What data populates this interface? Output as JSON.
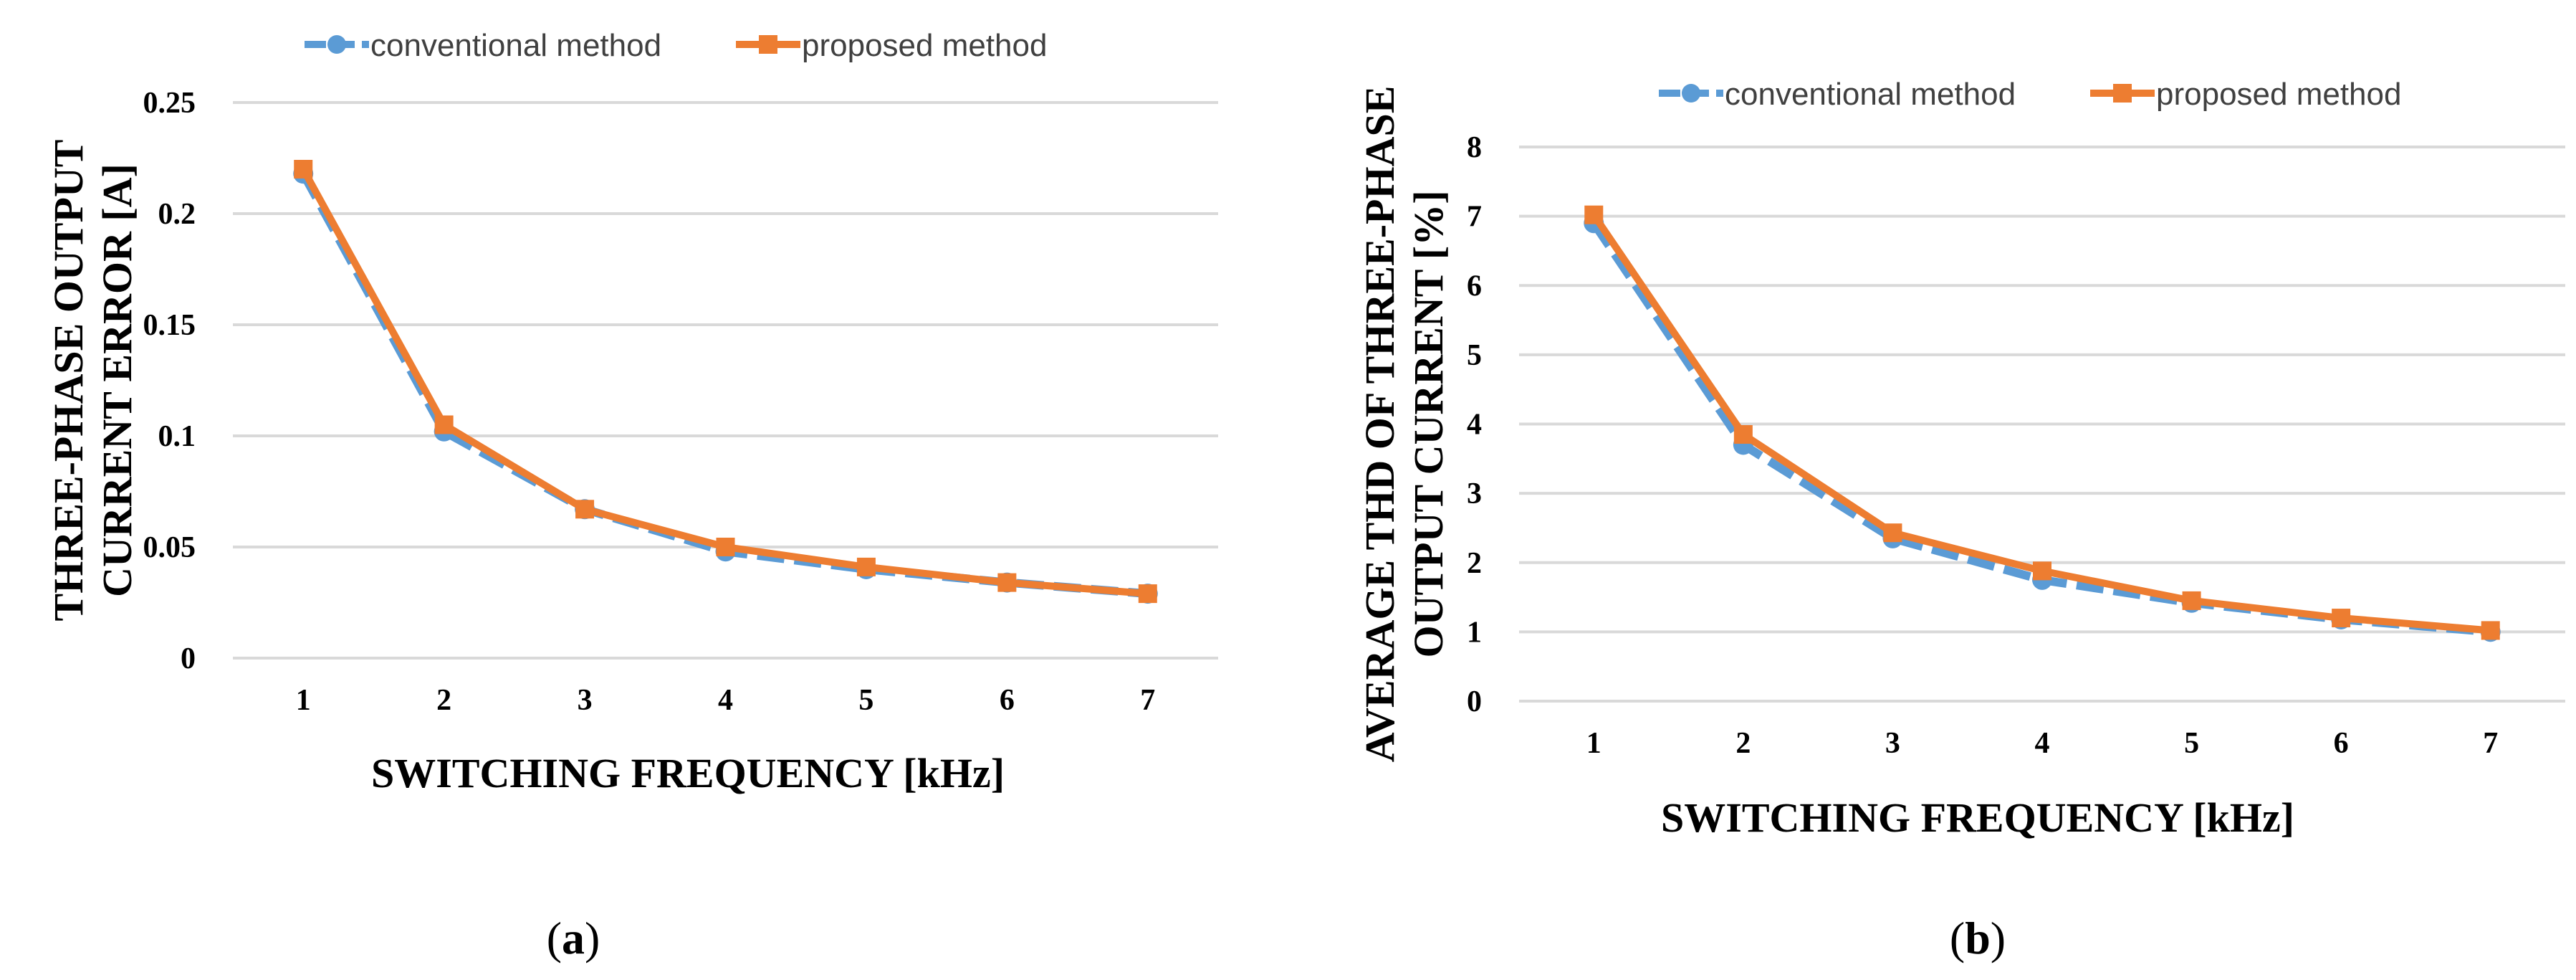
{
  "colors": {
    "conventional": "#5b9bd5",
    "proposed": "#ed7d31",
    "grid": "#d9d9d9"
  },
  "legend": {
    "conventional": "conventional method",
    "proposed": "proposed method"
  },
  "chart_data": [
    {
      "type": "line",
      "caption": "(a)",
      "caption_letter": "a",
      "categories": [
        "1",
        "2",
        "3",
        "4",
        "5",
        "6",
        "7"
      ],
      "series": [
        {
          "name": "conventional method",
          "values": [
            0.218,
            0.102,
            0.067,
            0.048,
            0.04,
            0.034,
            0.029
          ]
        },
        {
          "name": "proposed method",
          "values": [
            0.22,
            0.105,
            0.067,
            0.05,
            0.041,
            0.034,
            0.029
          ]
        }
      ],
      "xlabel": "SWITCHING FREQUENCY [kHz]",
      "ylabel_lines": [
        "THREE-PHASE OUTPUT",
        "CURRENT ERROR [A]"
      ],
      "ylim": [
        0,
        0.25
      ],
      "yticks": [
        "0",
        "0.05",
        "0.1",
        "0.15",
        "0.2",
        "0.25"
      ],
      "grid": true,
      "legend_position": "top"
    },
    {
      "type": "line",
      "caption": "(b)",
      "caption_letter": "b",
      "categories": [
        "1",
        "2",
        "3",
        "4",
        "5",
        "6",
        "7"
      ],
      "series": [
        {
          "name": "conventional method",
          "values": [
            6.9,
            3.7,
            2.35,
            1.75,
            1.42,
            1.18,
            1.0
          ]
        },
        {
          "name": "proposed method",
          "values": [
            7.02,
            3.85,
            2.43,
            1.88,
            1.45,
            1.2,
            1.02
          ]
        }
      ],
      "xlabel": "SWITCHING FREQUENCY [kHz]",
      "ylabel_lines": [
        "AVERAGE THD OF THREE-PHASE",
        "OUTPUT CURRENT [%]"
      ],
      "ylim": [
        0,
        8
      ],
      "yticks": [
        "0",
        "1",
        "2",
        "3",
        "4",
        "5",
        "6",
        "7",
        "8"
      ],
      "grid": true,
      "legend_position": "top"
    }
  ]
}
